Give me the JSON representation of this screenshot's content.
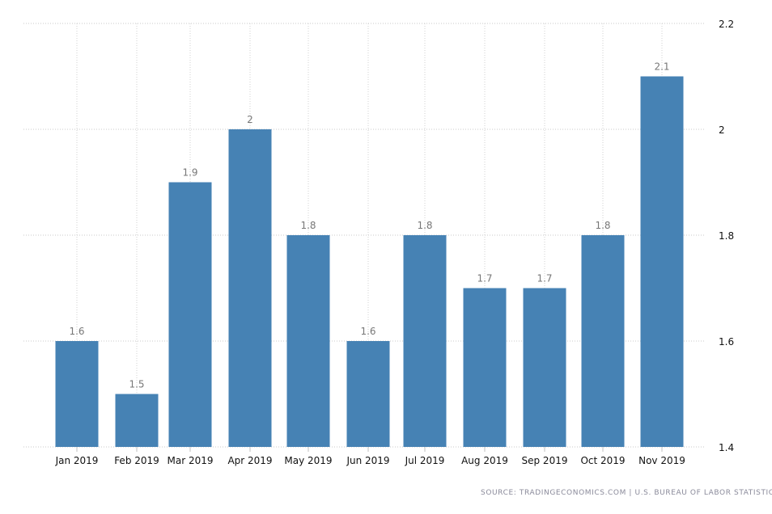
{
  "chart_data": {
    "type": "bar",
    "categories": [
      "Jan 2019",
      "Feb 2019",
      "Mar 2019",
      "Apr 2019",
      "May 2019",
      "Jun 2019",
      "Jul 2019",
      "Aug 2019",
      "Sep 2019",
      "Oct 2019",
      "Nov 2019"
    ],
    "values": [
      1.6,
      1.5,
      1.9,
      2,
      1.8,
      1.6,
      1.8,
      1.7,
      1.7,
      1.8,
      2.1
    ],
    "data_labels": [
      "1.6",
      "1.5",
      "1.9",
      "2",
      "1.8",
      "1.6",
      "1.8",
      "1.7",
      "1.7",
      "1.8",
      "2.1"
    ],
    "title": "",
    "xlabel": "",
    "ylabel": "",
    "ylim": [
      1.4,
      2.2
    ],
    "yticks": [
      "1.4",
      "1.6",
      "1.8",
      "2",
      "2.2"
    ],
    "y_axis_position": "right",
    "grid": true,
    "bar_color": "#4682b4"
  },
  "source": "SOURCE: TRADINGECONOMICS.COM  |  U.S. BUREAU OF LABOR STATISTICS"
}
